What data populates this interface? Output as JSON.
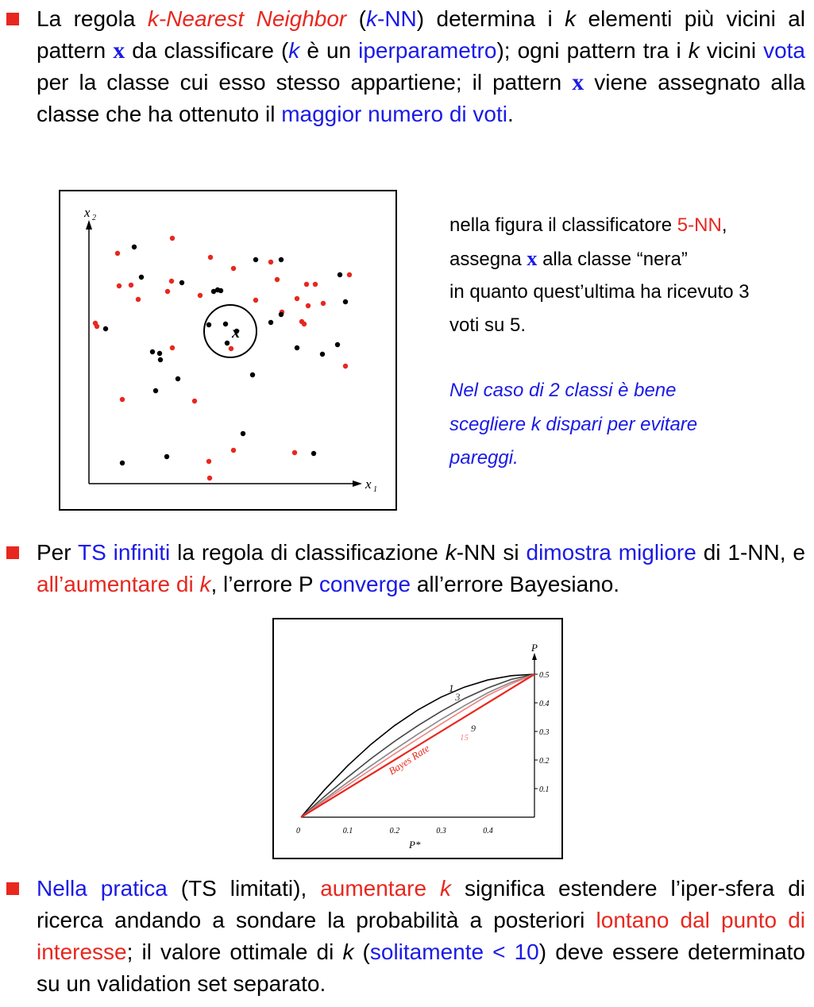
{
  "bullet1": {
    "t1": "La regola ",
    "t2": "k-Nearest Neighbor",
    "t3": " (",
    "t4": "k",
    "t5": "-NN",
    "t6": ") determina i ",
    "t7": "k",
    "t8": " elementi più vicini al pattern ",
    "t9": "x",
    "t10": " da classificare (",
    "t11": "k",
    "t12": " è un ",
    "t13": "iperparametro",
    "t14": "); ogni pattern tra i ",
    "t15": "k",
    "t16": " vicini ",
    "t17": "vota",
    "t18": " per la classe cui esso stesso appartiene; il pattern ",
    "t19": "x",
    "t20": " viene assegnato alla classe che ha ottenuto il ",
    "t21": "maggior numero di voti",
    "t22": "."
  },
  "figure1": {
    "x_axis_label": "x",
    "x_axis_sub": "1",
    "y_axis_label": "x",
    "y_axis_sub": "2",
    "query_label": "x",
    "colors": {
      "red": "#e8271f",
      "black": "#000000"
    }
  },
  "side_text": {
    "l1a": "nella figura il classificatore ",
    "l1b": "5-NN",
    "l1c": ",",
    "l2a": "assegna ",
    "l2b": "x",
    "l2c": " alla classe “nera”",
    "l3": "in quanto quest’ultima ha ricevuto 3",
    "l4": "voti su 5.",
    "note1": "Nel caso di 2 classi è bene",
    "note2": "scegliere k dispari per evitare",
    "note3": "pareggi."
  },
  "bullet2": {
    "t1": "Per ",
    "t2": "TS infiniti",
    "t3": " la regola di classificazione ",
    "t4": "k",
    "t5": "-NN si ",
    "t6": "dimostra migliore",
    "t7": " di 1-NN, e ",
    "t8": "all’aumentare di ",
    "t9": "k",
    "t10": ", l’errore P ",
    "t11": "converge",
    "t12": " all’errore Bayesiano."
  },
  "chart_data": {
    "type": "line",
    "xlabel": "P*",
    "ylabel": "P",
    "xlim": [
      0,
      0.5
    ],
    "ylim": [
      0,
      0.5
    ],
    "x_ticks": [
      "0",
      "0.1",
      "0.2",
      "0.3",
      "0.4"
    ],
    "y_ticks": [
      "0.1",
      "0.2",
      "0.3",
      "0.4",
      "0.5"
    ],
    "series": [
      {
        "name": "1",
        "x": [
          0,
          0.05,
          0.1,
          0.15,
          0.2,
          0.25,
          0.3,
          0.35,
          0.4,
          0.45,
          0.5
        ],
        "y": [
          0,
          0.095,
          0.18,
          0.255,
          0.32,
          0.375,
          0.42,
          0.455,
          0.48,
          0.495,
          0.5
        ]
      },
      {
        "name": "3",
        "x": [
          0,
          0.05,
          0.1,
          0.15,
          0.2,
          0.25,
          0.3,
          0.35,
          0.4,
          0.45,
          0.5
        ],
        "y": [
          0,
          0.072,
          0.14,
          0.205,
          0.265,
          0.32,
          0.37,
          0.415,
          0.452,
          0.482,
          0.5
        ]
      },
      {
        "name": "9",
        "x": [
          0,
          0.05,
          0.1,
          0.15,
          0.2,
          0.25,
          0.3,
          0.35,
          0.4,
          0.45,
          0.5
        ],
        "y": [
          0,
          0.062,
          0.122,
          0.18,
          0.236,
          0.29,
          0.342,
          0.39,
          0.435,
          0.472,
          0.5
        ]
      },
      {
        "name": "15",
        "x": [
          0,
          0.05,
          0.1,
          0.15,
          0.2,
          0.25,
          0.3,
          0.35,
          0.4,
          0.45,
          0.5
        ],
        "y": [
          0,
          0.057,
          0.112,
          0.167,
          0.221,
          0.274,
          0.326,
          0.377,
          0.426,
          0.466,
          0.5
        ]
      },
      {
        "name": "Bayes Rate",
        "x": [
          0,
          0.5
        ],
        "y": [
          0,
          0.5
        ]
      }
    ],
    "colors": {
      "curves": [
        "#000000",
        "#444444",
        "#888888",
        "#f08080"
      ],
      "bayes": "#e8271f"
    }
  },
  "bullet3": {
    "t1": "Nella pratica",
    "t2": " (TS limitati), ",
    "t3": "aumentare ",
    "t4": "k",
    "t5": " significa estendere l’iper-sfera di ricerca andando a sondare la probabilità a posteriori ",
    "t6": "lontano dal punto di interesse",
    "t7": "; il valore ottimale di ",
    "t8": "k",
    "t9": " (",
    "t10": "solitamente < 10",
    "t11": ") deve essere determinato su un validation set separato."
  }
}
